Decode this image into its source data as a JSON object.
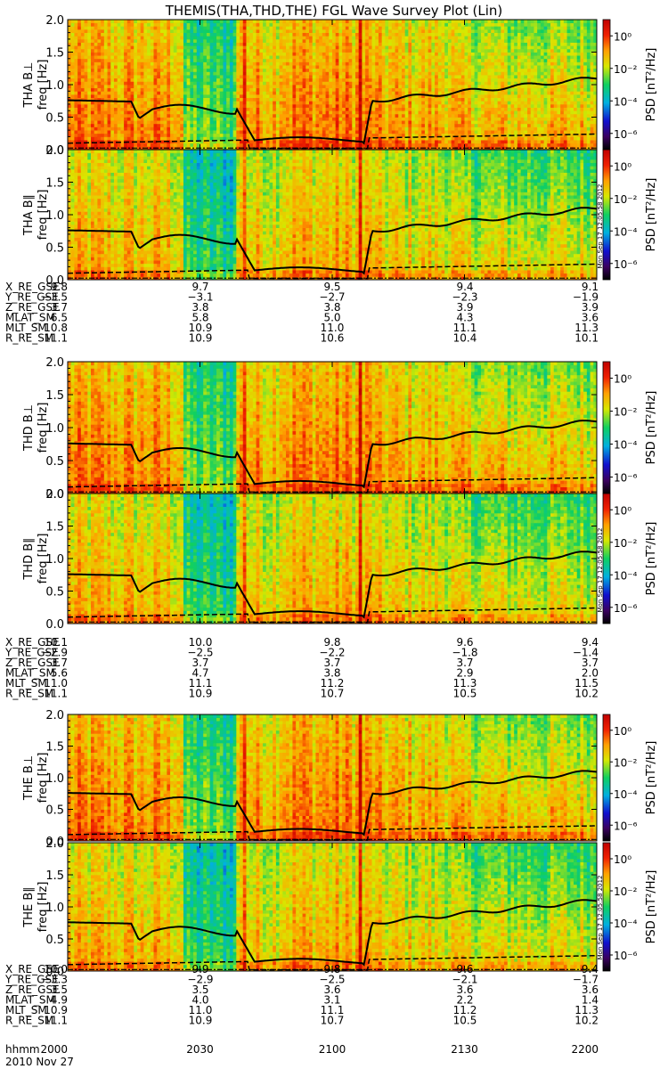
{
  "title": "THEMIS(THA,THD,THE) FGL Wave Survey Plot (Lin)",
  "timestamp_label": "Mon Sep 17 12:05:58 2012",
  "colorbar": {
    "label": "PSD [nT²/Hz]",
    "ticks": [
      "10⁰",
      "10⁻²",
      "10⁻⁴",
      "10⁻⁶"
    ],
    "range_log10": [
      -7,
      1
    ]
  },
  "chart_data": [
    {
      "type": "heatmap",
      "probe": "THA",
      "panels": [
        {
          "name": "THA B⊥",
          "ylabel": "freq [Hz]",
          "ylim": [
            0,
            2.0
          ],
          "yticks": [
            "0.0",
            "0.5",
            "1.0",
            "1.5",
            "2.0"
          ]
        },
        {
          "name": "THA B∥",
          "ylabel": "freq [Hz]",
          "ylim": [
            0,
            2.0
          ],
          "yticks": [
            "0.0",
            "0.5",
            "1.0",
            "1.5",
            "2.0"
          ]
        }
      ],
      "ephemeris": [
        {
          "label": "X_RE_GSE",
          "values": [
            "9.8",
            "9.7",
            "9.5",
            "9.4",
            "9.1"
          ]
        },
        {
          "label": "Y_RE_GSE",
          "values": [
            "−3.5",
            "−3.1",
            "−2.7",
            "−2.3",
            "−1.9"
          ]
        },
        {
          "label": "Z_RE_GSE",
          "values": [
            "3.7",
            "3.8",
            "3.8",
            "3.9",
            "3.9"
          ]
        },
        {
          "label": "MLAT_SM",
          "values": [
            "6.5",
            "5.8",
            "5.0",
            "4.3",
            "3.6"
          ]
        },
        {
          "label": "MLT_SM",
          "values": [
            "10.8",
            "10.9",
            "11.0",
            "11.1",
            "11.3"
          ]
        },
        {
          "label": "R_RE_SM",
          "values": [
            "11.1",
            "10.9",
            "10.6",
            "10.4",
            "10.1"
          ]
        }
      ]
    },
    {
      "type": "heatmap",
      "probe": "THD",
      "panels": [
        {
          "name": "THD B⊥",
          "ylabel": "freq [Hz]",
          "ylim": [
            0,
            2.0
          ],
          "yticks": [
            "0.0",
            "0.5",
            "1.0",
            "1.5",
            "2.0"
          ]
        },
        {
          "name": "THD B∥",
          "ylabel": "freq [Hz]",
          "ylim": [
            0,
            2.0
          ],
          "yticks": [
            "0.0",
            "0.5",
            "1.0",
            "1.5",
            "2.0"
          ]
        }
      ],
      "ephemeris": [
        {
          "label": "X_RE_GSE",
          "values": [
            "10.1",
            "10.0",
            "9.8",
            "9.6",
            "9.4"
          ]
        },
        {
          "label": "Y_RE_GSE",
          "values": [
            "−2.9",
            "−2.5",
            "−2.2",
            "−1.8",
            "−1.4"
          ]
        },
        {
          "label": "Z_RE_GSE",
          "values": [
            "3.7",
            "3.7",
            "3.7",
            "3.7",
            "3.7"
          ]
        },
        {
          "label": "MLAT_SM",
          "values": [
            "5.6",
            "4.7",
            "3.8",
            "2.9",
            "2.0"
          ]
        },
        {
          "label": "MLT_SM",
          "values": [
            "11.0",
            "11.1",
            "11.2",
            "11.3",
            "11.5"
          ]
        },
        {
          "label": "R_RE_SM",
          "values": [
            "11.1",
            "10.9",
            "10.7",
            "10.5",
            "10.2"
          ]
        }
      ]
    },
    {
      "type": "heatmap",
      "probe": "THE",
      "panels": [
        {
          "name": "THE B⊥",
          "ylabel": "freq [Hz]",
          "ylim": [
            0,
            2.0
          ],
          "yticks": [
            "0.0",
            "0.5",
            "1.0",
            "1.5",
            "2.0"
          ]
        },
        {
          "name": "THE B∥",
          "ylabel": "freq [Hz]",
          "ylim": [
            0,
            2.0
          ],
          "yticks": [
            "0.0",
            "0.5",
            "1.0",
            "1.5",
            "2.0"
          ]
        }
      ],
      "ephemeris": [
        {
          "label": "X_RE_GSE",
          "values": [
            "10.0",
            "9.9",
            "9.8",
            "9.6",
            "9.4"
          ]
        },
        {
          "label": "Y_RE_GSE",
          "values": [
            "−3.3",
            "−2.9",
            "−2.5",
            "−2.1",
            "−1.7"
          ]
        },
        {
          "label": "Z_RE_GSE",
          "values": [
            "3.5",
            "3.5",
            "3.6",
            "3.6",
            "3.6"
          ]
        },
        {
          "label": "MLAT_SM",
          "values": [
            "4.9",
            "4.0",
            "3.1",
            "2.2",
            "1.4"
          ]
        },
        {
          "label": "MLT_SM",
          "values": [
            "10.9",
            "11.0",
            "11.1",
            "11.2",
            "11.3"
          ]
        },
        {
          "label": "R_RE_SM",
          "values": [
            "11.1",
            "10.9",
            "10.7",
            "10.5",
            "10.2"
          ]
        }
      ]
    }
  ],
  "time_axis": {
    "label": "hhmm",
    "ticks": [
      "2000",
      "2030",
      "2100",
      "2130",
      "2200"
    ],
    "date": "2010 Nov 27"
  }
}
